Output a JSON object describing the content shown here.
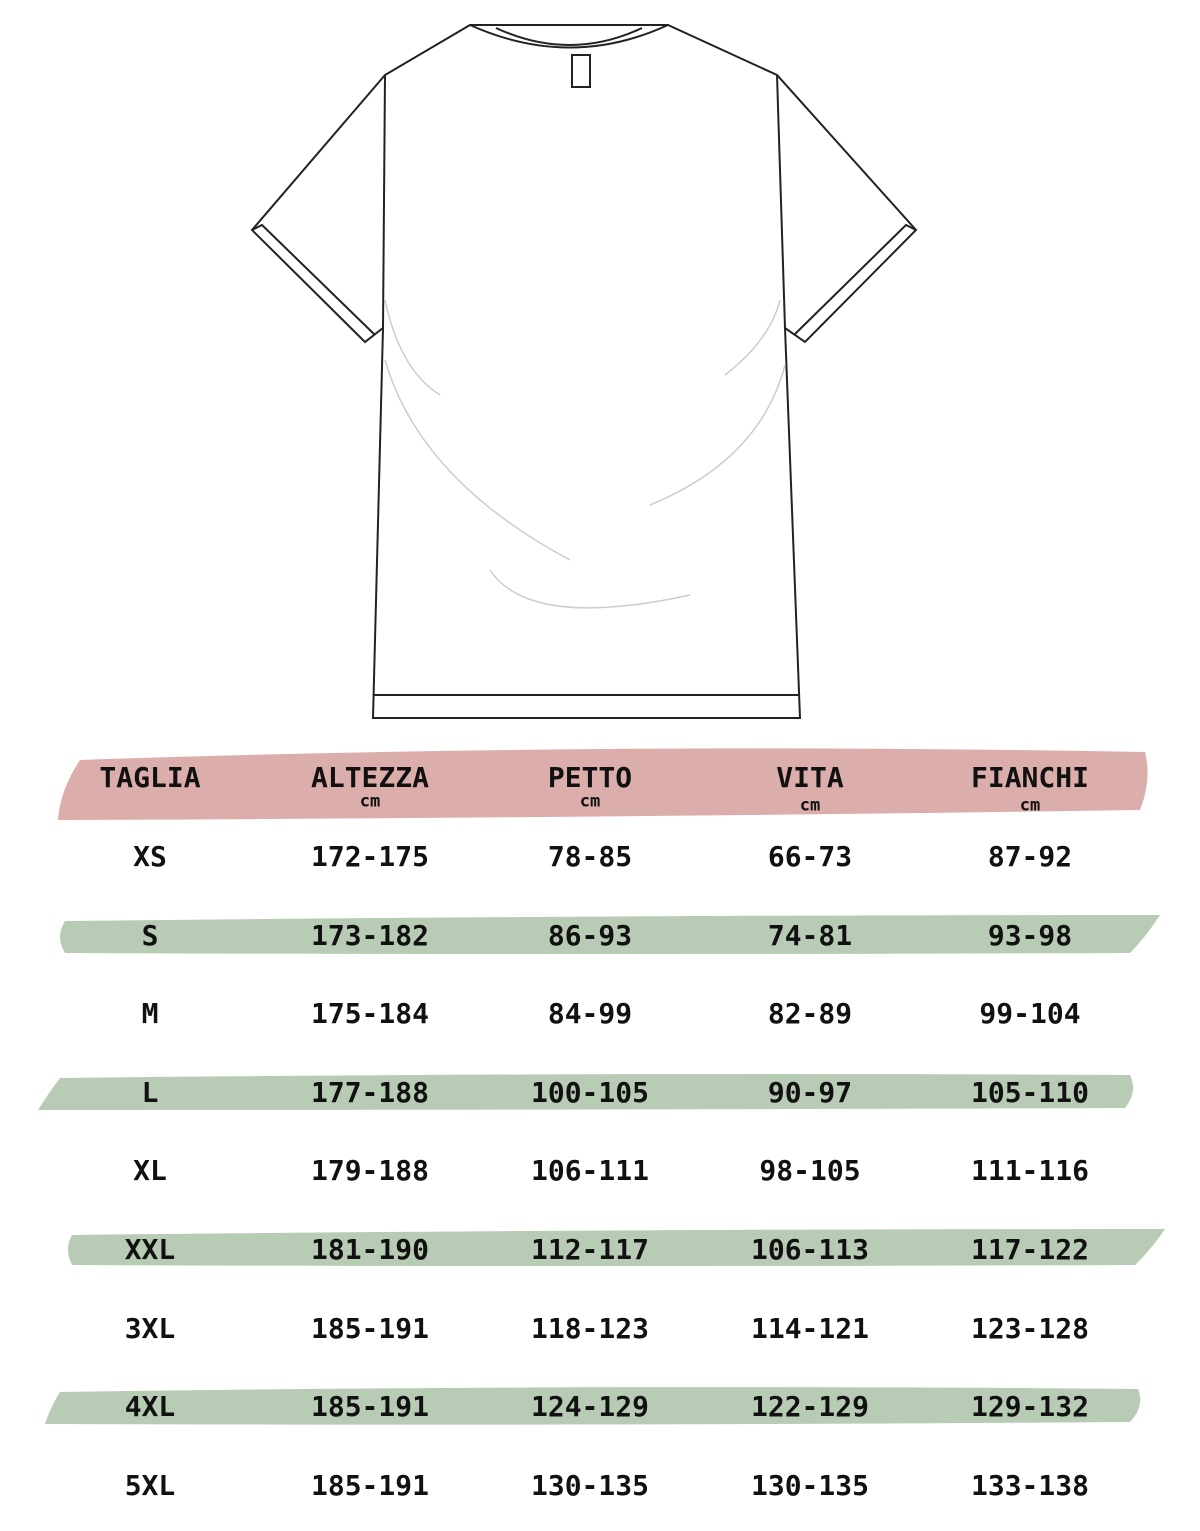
{
  "colors": {
    "header_band": "#dcaeab",
    "row_band": "#b8cbb4",
    "text": "#111111"
  },
  "illustration": "t-shirt-outline",
  "table": {
    "columns": [
      {
        "label": "TAGLIA",
        "unit": ""
      },
      {
        "label": "ALTEZZA",
        "unit": "cm"
      },
      {
        "label": "PETTO",
        "unit": "cm"
      },
      {
        "label": "VITA",
        "unit": "cm"
      },
      {
        "label": "FIANCHI",
        "unit": "cm"
      }
    ],
    "rows": [
      [
        "XS",
        "172-175",
        "78-85",
        "66-73",
        "87-92"
      ],
      [
        "S",
        "173-182",
        "86-93",
        "74-81",
        "93-98"
      ],
      [
        "M",
        "175-184",
        "84-99",
        "82-89",
        "99-104"
      ],
      [
        "L",
        "177-188",
        "100-105",
        "90-97",
        "105-110"
      ],
      [
        "XL",
        "179-188",
        "106-111",
        "98-105",
        "111-116"
      ],
      [
        "XXL",
        "181-190",
        "112-117",
        "106-113",
        "117-122"
      ],
      [
        "3XL",
        "185-191",
        "118-123",
        "114-121",
        "123-128"
      ],
      [
        "4XL",
        "185-191",
        "124-129",
        "122-129",
        "129-132"
      ],
      [
        "5XL",
        "185-191",
        "130-135",
        "130-135",
        "133-138"
      ]
    ]
  }
}
